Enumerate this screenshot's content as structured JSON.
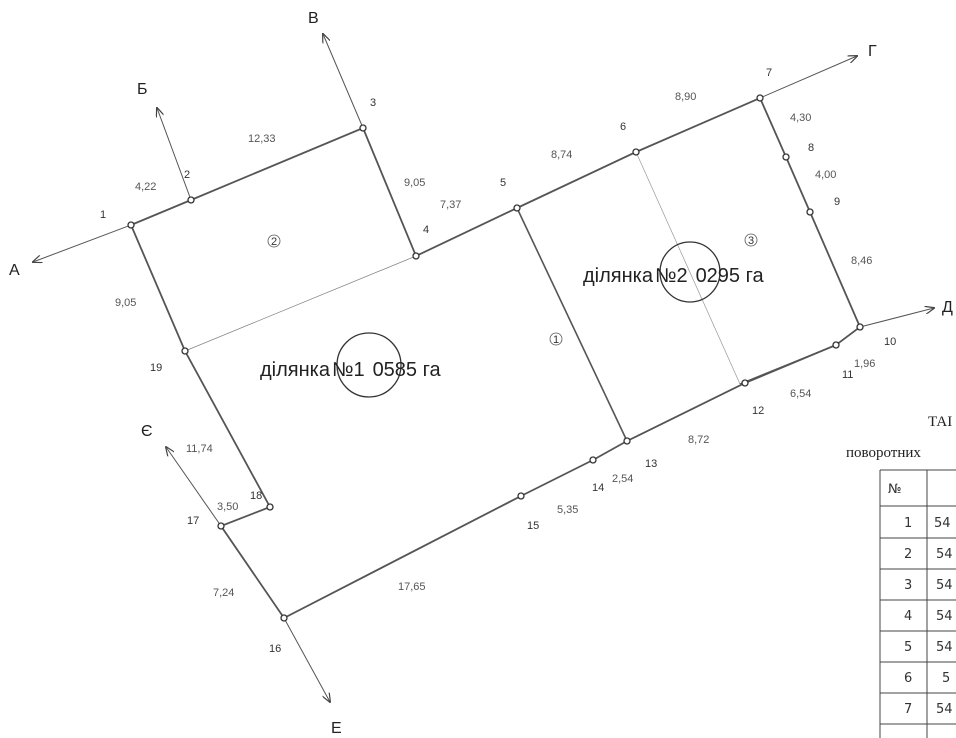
{
  "directions": [
    "А",
    "Б",
    "В",
    "Г",
    "Д",
    "Е",
    "Є"
  ],
  "points": [
    "1",
    "2",
    "3",
    "4",
    "5",
    "6",
    "7",
    "8",
    "9",
    "10",
    "11",
    "12",
    "13",
    "14",
    "15",
    "16",
    "17",
    "18",
    "19"
  ],
  "lengths": [
    "4,22",
    "12,33",
    "9,05",
    "7,37",
    "8,74",
    "8,90",
    "4,30",
    "4,00",
    "8,46",
    "1,96",
    "6,54",
    "8,72",
    "2,54",
    "5,35",
    "17,65",
    "7,24",
    "3,50",
    "11,74",
    "9,05"
  ],
  "parcels": [
    {
      "prefix": "ділянка",
      "number": "№1",
      "area": "0,0585 га",
      "area_display": "0585 га"
    },
    {
      "prefix": "ділянка",
      "number": "№2",
      "area": "0,0295 га",
      "area_display": "0295 га"
    }
  ],
  "area_marks": [
    "1",
    "2",
    "3"
  ],
  "table": {
    "title_fragment": "ТАІ",
    "subtitle_fragment": "поворотних",
    "header": "№",
    "rows": [
      {
        "n": "1",
        "value": "54"
      },
      {
        "n": "2",
        "value": "54"
      },
      {
        "n": "3",
        "value": "54"
      },
      {
        "n": "4",
        "value": "54"
      },
      {
        "n": "5",
        "value": "54"
      },
      {
        "n": "6",
        "value": "5"
      },
      {
        "n": "7",
        "value": "54"
      }
    ]
  }
}
